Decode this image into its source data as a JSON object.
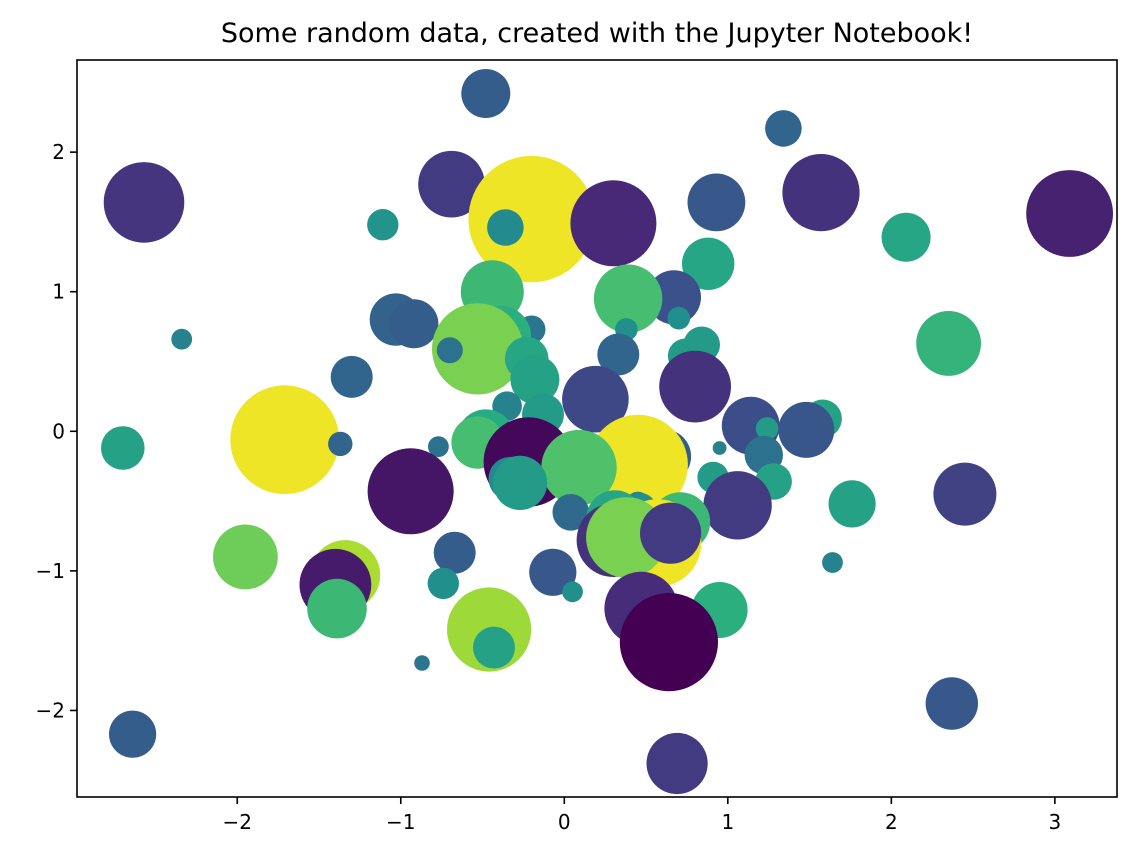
{
  "chart_data": {
    "type": "scatter",
    "title": "Some random data, created with the Jupyter Notebook!",
    "xlabel": "",
    "ylabel": "",
    "xlim": [
      -2.98,
      3.38
    ],
    "ylim": [
      -2.62,
      2.66
    ],
    "xticks": [
      -2,
      -1,
      0,
      1,
      2,
      3
    ],
    "yticks": [
      -2,
      -1,
      0,
      1,
      2
    ],
    "tick_labels_x": [
      "−2",
      "−1",
      "0",
      "1",
      "2",
      "3"
    ],
    "tick_labels_y": [
      "−2",
      "−1",
      "0",
      "1",
      "2"
    ],
    "grid": false,
    "legend": "none",
    "colormap": "viridis",
    "points": [
      {
        "x": -0.48,
        "y": 2.42,
        "size": 0.42,
        "color": 0.3
      },
      {
        "x": 1.34,
        "y": 2.17,
        "size": 0.28,
        "color": 0.33
      },
      {
        "x": -0.69,
        "y": 1.77,
        "size": 0.62,
        "color": 0.18
      },
      {
        "x": 1.57,
        "y": 1.71,
        "size": 0.74,
        "color": 0.15
      },
      {
        "x": -2.57,
        "y": 1.64,
        "size": 0.78,
        "color": 0.16
      },
      {
        "x": 0.93,
        "y": 1.64,
        "size": 0.52,
        "color": 0.28
      },
      {
        "x": 3.09,
        "y": 1.56,
        "size": 0.85,
        "color": 0.1
      },
      {
        "x": -0.2,
        "y": 1.52,
        "size": 1.3,
        "color": 0.98
      },
      {
        "x": 0.3,
        "y": 1.49,
        "size": 0.84,
        "color": 0.12
      },
      {
        "x": -1.11,
        "y": 1.48,
        "size": 0.22,
        "color": 0.52
      },
      {
        "x": -0.36,
        "y": 1.46,
        "size": 0.28,
        "color": 0.48
      },
      {
        "x": 2.09,
        "y": 1.39,
        "size": 0.42,
        "color": 0.6
      },
      {
        "x": 0.88,
        "y": 1.2,
        "size": 0.46,
        "color": 0.6
      },
      {
        "x": -0.44,
        "y": 1.0,
        "size": 0.58,
        "color": 0.68
      },
      {
        "x": 0.67,
        "y": 0.96,
        "size": 0.48,
        "color": 0.25
      },
      {
        "x": 0.39,
        "y": 0.95,
        "size": 0.64,
        "color": 0.7
      },
      {
        "x": -1.03,
        "y": 0.8,
        "size": 0.46,
        "color": 0.32
      },
      {
        "x": -0.92,
        "y": 0.77,
        "size": 0.42,
        "color": 0.3
      },
      {
        "x": 0.7,
        "y": 0.81,
        "size": 0.12,
        "color": 0.5
      },
      {
        "x": -0.2,
        "y": 0.73,
        "size": 0.18,
        "color": 0.4
      },
      {
        "x": -0.39,
        "y": 0.68,
        "size": 0.56,
        "color": 0.64
      },
      {
        "x": 0.38,
        "y": 0.73,
        "size": 0.12,
        "color": 0.5
      },
      {
        "x": -2.34,
        "y": 0.66,
        "size": 0.1,
        "color": 0.45
      },
      {
        "x": 2.35,
        "y": 0.63,
        "size": 0.6,
        "color": 0.66
      },
      {
        "x": 0.84,
        "y": 0.62,
        "size": 0.28,
        "color": 0.55
      },
      {
        "x": -0.53,
        "y": 0.59,
        "size": 0.9,
        "color": 0.8
      },
      {
        "x": 0.33,
        "y": 0.55,
        "size": 0.34,
        "color": 0.33
      },
      {
        "x": 0.74,
        "y": 0.54,
        "size": 0.26,
        "color": 0.55
      },
      {
        "x": -0.7,
        "y": 0.58,
        "size": 0.16,
        "color": 0.38
      },
      {
        "x": -0.23,
        "y": 0.52,
        "size": 0.36,
        "color": 0.6
      },
      {
        "x": -1.3,
        "y": 0.39,
        "size": 0.34,
        "color": 0.33
      },
      {
        "x": -0.18,
        "y": 0.37,
        "size": 0.42,
        "color": 0.58
      },
      {
        "x": 0.8,
        "y": 0.32,
        "size": 0.68,
        "color": 0.15
      },
      {
        "x": 0.19,
        "y": 0.23,
        "size": 0.62,
        "color": 0.22
      },
      {
        "x": -0.35,
        "y": 0.18,
        "size": 0.2,
        "color": 0.45
      },
      {
        "x": -0.13,
        "y": 0.12,
        "size": 0.34,
        "color": 0.55
      },
      {
        "x": 1.58,
        "y": 0.09,
        "size": 0.3,
        "color": 0.58
      },
      {
        "x": 1.14,
        "y": 0.04,
        "size": 0.52,
        "color": 0.24
      },
      {
        "x": 1.48,
        "y": 0.01,
        "size": 0.5,
        "color": 0.27
      },
      {
        "x": 1.24,
        "y": 0.02,
        "size": 0.12,
        "color": 0.55
      },
      {
        "x": -1.65,
        "y": 0.05,
        "size": 0.28,
        "color": 0.35
      },
      {
        "x": -1.71,
        "y": -0.06,
        "size": 1.1,
        "color": 0.98
      },
      {
        "x": -0.48,
        "y": -0.05,
        "size": 0.52,
        "color": 0.62
      },
      {
        "x": -0.53,
        "y": -0.08,
        "size": 0.46,
        "color": 0.7
      },
      {
        "x": -1.37,
        "y": -0.09,
        "size": 0.14,
        "color": 0.33
      },
      {
        "x": -2.7,
        "y": -0.12,
        "size": 0.36,
        "color": 0.58
      },
      {
        "x": -0.77,
        "y": -0.11,
        "size": 0.1,
        "color": 0.38
      },
      {
        "x": 0.95,
        "y": -0.12,
        "size": 0.02,
        "color": 0.45
      },
      {
        "x": 1.22,
        "y": -0.17,
        "size": 0.3,
        "color": 0.38
      },
      {
        "x": 0.61,
        "y": -0.18,
        "size": 0.48,
        "color": 0.3
      },
      {
        "x": -0.22,
        "y": -0.22,
        "size": 0.88,
        "color": 0.02
      },
      {
        "x": 0.45,
        "y": -0.24,
        "size": 1.0,
        "color": 0.98
      },
      {
        "x": 0.09,
        "y": -0.26,
        "size": 0.72,
        "color": 0.72
      },
      {
        "x": 0.91,
        "y": -0.33,
        "size": 0.22,
        "color": 0.55
      },
      {
        "x": -0.33,
        "y": -0.34,
        "size": 0.36,
        "color": 0.48
      },
      {
        "x": -0.27,
        "y": -0.37,
        "size": 0.48,
        "color": 0.55
      },
      {
        "x": 1.28,
        "y": -0.36,
        "size": 0.28,
        "color": 0.58
      },
      {
        "x": -0.88,
        "y": -0.43,
        "size": 0.62,
        "color": 0.68
      },
      {
        "x": -0.94,
        "y": -0.43,
        "size": 0.84,
        "color": 0.06
      },
      {
        "x": 2.45,
        "y": -0.45,
        "size": 0.58,
        "color": 0.2
      },
      {
        "x": 1.06,
        "y": -0.53,
        "size": 0.64,
        "color": 0.18
      },
      {
        "x": 0.45,
        "y": -0.52,
        "size": 0.14,
        "color": 0.45
      },
      {
        "x": 1.76,
        "y": -0.52,
        "size": 0.4,
        "color": 0.58
      },
      {
        "x": 0.47,
        "y": -0.55,
        "size": 0.2,
        "color": 0.5
      },
      {
        "x": 0.04,
        "y": -0.58,
        "size": 0.28,
        "color": 0.35
      },
      {
        "x": 0.31,
        "y": -0.63,
        "size": 0.52,
        "color": 0.6
      },
      {
        "x": 0.71,
        "y": -0.65,
        "size": 0.54,
        "color": 0.68
      },
      {
        "x": 0.46,
        "y": -0.66,
        "size": 0.4,
        "color": 0.55
      },
      {
        "x": 0.3,
        "y": -0.78,
        "size": 0.7,
        "color": 0.15
      },
      {
        "x": 0.57,
        "y": -0.8,
        "size": 0.86,
        "color": 0.98
      },
      {
        "x": 0.38,
        "y": -0.76,
        "size": 0.78,
        "color": 0.8
      },
      {
        "x": 0.65,
        "y": -0.73,
        "size": 0.56,
        "color": 0.18
      },
      {
        "x": -0.67,
        "y": -0.87,
        "size": 0.34,
        "color": 0.3
      },
      {
        "x": -1.95,
        "y": -0.9,
        "size": 0.6,
        "color": 0.78
      },
      {
        "x": -1.34,
        "y": -1.03,
        "size": 0.66,
        "color": 0.88
      },
      {
        "x": -0.07,
        "y": -1.01,
        "size": 0.4,
        "color": 0.28
      },
      {
        "x": 1.64,
        "y": -0.94,
        "size": 0.1,
        "color": 0.45
      },
      {
        "x": -1.4,
        "y": -1.1,
        "size": 0.68,
        "color": 0.08
      },
      {
        "x": -0.74,
        "y": -1.09,
        "size": 0.22,
        "color": 0.5
      },
      {
        "x": 0.05,
        "y": -1.15,
        "size": 0.1,
        "color": 0.5
      },
      {
        "x": -0.57,
        "y": -1.24,
        "size": 0.12,
        "color": 0.48
      },
      {
        "x": -1.39,
        "y": -1.27,
        "size": 0.54,
        "color": 0.68
      },
      {
        "x": 0.95,
        "y": -1.28,
        "size": 0.5,
        "color": 0.64
      },
      {
        "x": 0.47,
        "y": -1.27,
        "size": 0.7,
        "color": 0.13
      },
      {
        "x": -0.46,
        "y": -1.42,
        "size": 0.82,
        "color": 0.86
      },
      {
        "x": -0.43,
        "y": -1.55,
        "size": 0.34,
        "color": 0.58
      },
      {
        "x": 0.7,
        "y": -1.63,
        "size": 0.38,
        "color": 0.2
      },
      {
        "x": 0.64,
        "y": -1.51,
        "size": 0.98,
        "color": 0.0
      },
      {
        "x": -0.87,
        "y": -1.66,
        "size": 0.04,
        "color": 0.4
      },
      {
        "x": 2.37,
        "y": -1.95,
        "size": 0.46,
        "color": 0.28
      },
      {
        "x": -2.64,
        "y": -2.17,
        "size": 0.4,
        "color": 0.3
      },
      {
        "x": 0.69,
        "y": -2.38,
        "size": 0.56,
        "color": 0.18
      }
    ]
  }
}
